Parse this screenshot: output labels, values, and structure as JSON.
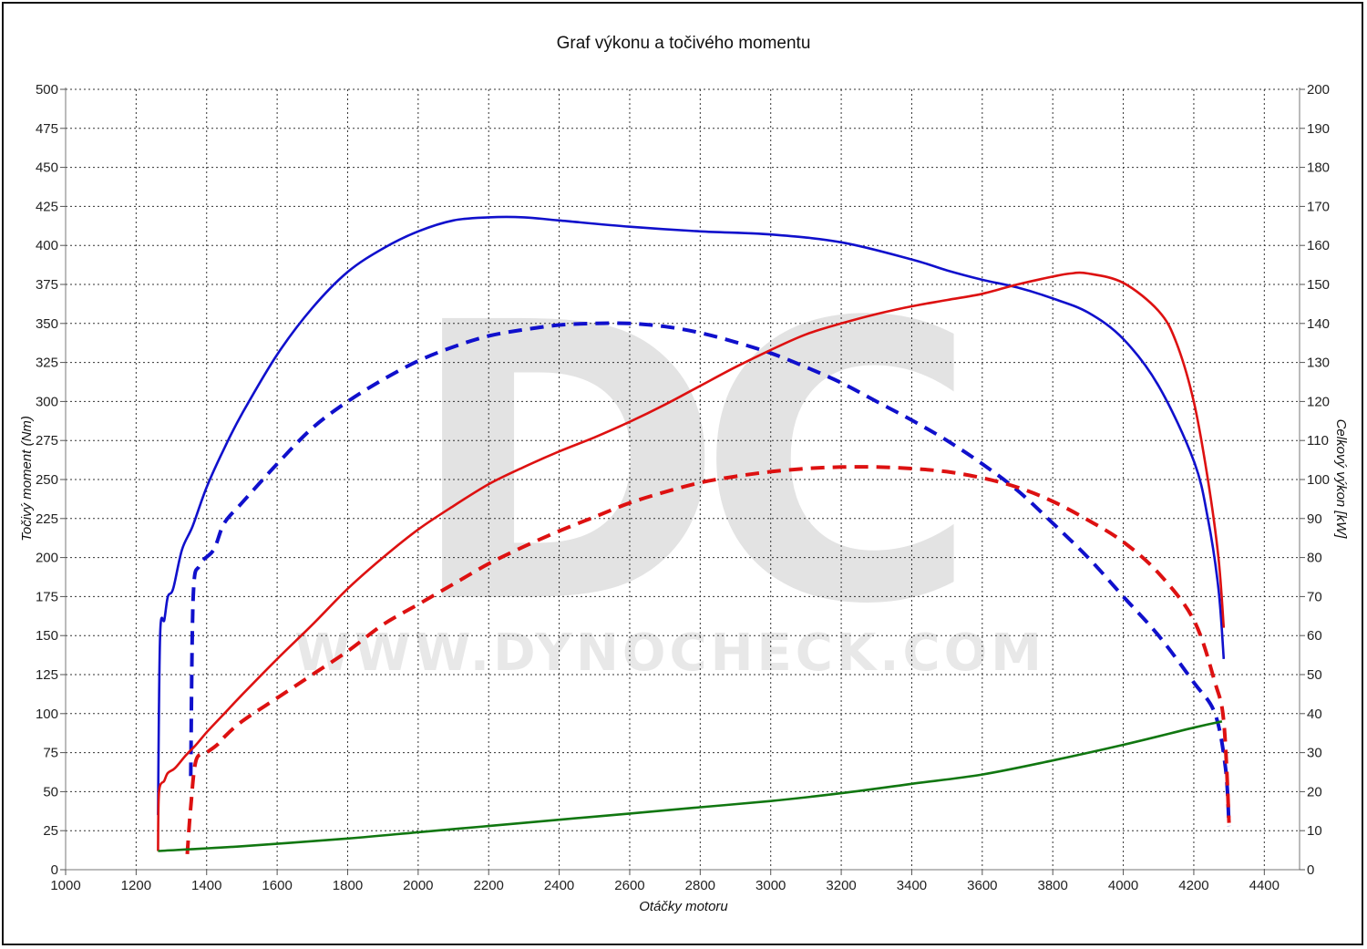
{
  "chart_data": {
    "type": "line",
    "title": "Graf výkonu a točivého momentu",
    "xlabel": "Otáčky motoru",
    "ylabel_left": "Točivý moment (Nm)",
    "ylabel_right": "Celkový výkon [kW]",
    "xlim": [
      1000,
      4500
    ],
    "ylim_left": [
      0,
      500
    ],
    "ylim_right": [
      0,
      200
    ],
    "x_ticks": [
      1000,
      1200,
      1400,
      1600,
      1800,
      2000,
      2200,
      2400,
      2600,
      2800,
      3000,
      3200,
      3400,
      3600,
      3800,
      4000,
      4200,
      4400
    ],
    "y_left_ticks": [
      0,
      25,
      50,
      75,
      100,
      125,
      150,
      175,
      200,
      225,
      250,
      275,
      300,
      325,
      350,
      375,
      400,
      425,
      450,
      475,
      500
    ],
    "y_right_ticks": [
      0,
      10,
      20,
      30,
      40,
      50,
      60,
      70,
      80,
      90,
      100,
      110,
      120,
      130,
      140,
      150,
      160,
      170,
      180,
      190,
      200
    ],
    "grid": true,
    "watermark": {
      "logo": "DC",
      "url": "WWW.DYNOCHECK.COM"
    },
    "series": [
      {
        "color": "#1010cc",
        "dash": "solid",
        "axis": "left",
        "points": [
          [
            1262,
            35
          ],
          [
            1268,
            150
          ],
          [
            1280,
            160
          ],
          [
            1290,
            175
          ],
          [
            1305,
            180
          ],
          [
            1330,
            205
          ],
          [
            1360,
            220
          ],
          [
            1400,
            245
          ],
          [
            1450,
            270
          ],
          [
            1500,
            292
          ],
          [
            1600,
            330
          ],
          [
            1700,
            360
          ],
          [
            1800,
            383
          ],
          [
            1900,
            398
          ],
          [
            2000,
            409
          ],
          [
            2100,
            416
          ],
          [
            2200,
            418
          ],
          [
            2300,
            418
          ],
          [
            2400,
            416
          ],
          [
            2600,
            412
          ],
          [
            2800,
            409
          ],
          [
            3000,
            407
          ],
          [
            3200,
            402
          ],
          [
            3400,
            391
          ],
          [
            3500,
            384
          ],
          [
            3600,
            378
          ],
          [
            3700,
            373
          ],
          [
            3800,
            366
          ],
          [
            3900,
            357
          ],
          [
            4000,
            340
          ],
          [
            4100,
            310
          ],
          [
            4200,
            262
          ],
          [
            4240,
            225
          ],
          [
            4270,
            180
          ],
          [
            4285,
            135
          ]
        ]
      },
      {
        "color": "#1010cc",
        "dash": "dashed",
        "axis": "left",
        "points": [
          [
            1355,
            60
          ],
          [
            1362,
            175
          ],
          [
            1380,
            195
          ],
          [
            1420,
            205
          ],
          [
            1450,
            222
          ],
          [
            1500,
            235
          ],
          [
            1600,
            260
          ],
          [
            1700,
            283
          ],
          [
            1800,
            300
          ],
          [
            1900,
            314
          ],
          [
            2000,
            326
          ],
          [
            2100,
            335
          ],
          [
            2200,
            342
          ],
          [
            2300,
            346
          ],
          [
            2400,
            349
          ],
          [
            2500,
            350
          ],
          [
            2600,
            350
          ],
          [
            2700,
            348
          ],
          [
            2800,
            344
          ],
          [
            2900,
            338
          ],
          [
            3000,
            331
          ],
          [
            3100,
            322
          ],
          [
            3200,
            312
          ],
          [
            3300,
            300
          ],
          [
            3400,
            288
          ],
          [
            3500,
            275
          ],
          [
            3600,
            260
          ],
          [
            3700,
            243
          ],
          [
            3800,
            222
          ],
          [
            3900,
            200
          ],
          [
            4000,
            175
          ],
          [
            4100,
            150
          ],
          [
            4200,
            120
          ],
          [
            4260,
            100
          ],
          [
            4290,
            65
          ],
          [
            4300,
            28
          ]
        ]
      },
      {
        "color": "#dd1111",
        "dash": "solid",
        "axis": "left",
        "points": [
          [
            1262,
            12
          ],
          [
            1265,
            50
          ],
          [
            1280,
            57
          ],
          [
            1290,
            62
          ],
          [
            1310,
            65
          ],
          [
            1340,
            73
          ],
          [
            1370,
            80
          ],
          [
            1400,
            88
          ],
          [
            1450,
            100
          ],
          [
            1500,
            112
          ],
          [
            1600,
            135
          ],
          [
            1700,
            157
          ],
          [
            1800,
            180
          ],
          [
            1900,
            200
          ],
          [
            2000,
            218
          ],
          [
            2100,
            233
          ],
          [
            2200,
            247
          ],
          [
            2300,
            258
          ],
          [
            2400,
            268
          ],
          [
            2500,
            277
          ],
          [
            2600,
            287
          ],
          [
            2700,
            298
          ],
          [
            2800,
            310
          ],
          [
            2900,
            322
          ],
          [
            3000,
            333
          ],
          [
            3100,
            343
          ],
          [
            3200,
            350
          ],
          [
            3300,
            356
          ],
          [
            3400,
            361
          ],
          [
            3500,
            365
          ],
          [
            3600,
            369
          ],
          [
            3700,
            375
          ],
          [
            3800,
            380
          ],
          [
            3850,
            382
          ],
          [
            3900,
            382
          ],
          [
            4000,
            376
          ],
          [
            4100,
            358
          ],
          [
            4150,
            338
          ],
          [
            4200,
            300
          ],
          [
            4240,
            250
          ],
          [
            4270,
            200
          ],
          [
            4285,
            155
          ]
        ]
      },
      {
        "color": "#dd1111",
        "dash": "dashed",
        "axis": "left",
        "points": [
          [
            1345,
            10
          ],
          [
            1355,
            40
          ],
          [
            1370,
            70
          ],
          [
            1400,
            75
          ],
          [
            1430,
            80
          ],
          [
            1450,
            85
          ],
          [
            1500,
            95
          ],
          [
            1600,
            110
          ],
          [
            1700,
            125
          ],
          [
            1800,
            140
          ],
          [
            1900,
            157
          ],
          [
            2000,
            170
          ],
          [
            2100,
            183
          ],
          [
            2200,
            196
          ],
          [
            2300,
            207
          ],
          [
            2400,
            217
          ],
          [
            2500,
            226
          ],
          [
            2600,
            235
          ],
          [
            2700,
            242
          ],
          [
            2800,
            248
          ],
          [
            2900,
            252
          ],
          [
            3000,
            255
          ],
          [
            3100,
            257
          ],
          [
            3200,
            258
          ],
          [
            3300,
            258
          ],
          [
            3400,
            257
          ],
          [
            3500,
            255
          ],
          [
            3600,
            251
          ],
          [
            3700,
            245
          ],
          [
            3800,
            236
          ],
          [
            3900,
            224
          ],
          [
            4000,
            210
          ],
          [
            4100,
            190
          ],
          [
            4200,
            160
          ],
          [
            4260,
            120
          ],
          [
            4285,
            95
          ],
          [
            4300,
            30
          ]
        ]
      },
      {
        "color": "#117711",
        "dash": "solid",
        "axis": "left",
        "points": [
          [
            1262,
            12
          ],
          [
            1500,
            15
          ],
          [
            1800,
            20
          ],
          [
            2000,
            24
          ],
          [
            2200,
            28
          ],
          [
            2400,
            32
          ],
          [
            2600,
            36
          ],
          [
            2800,
            40
          ],
          [
            3000,
            44
          ],
          [
            3200,
            49
          ],
          [
            3400,
            55
          ],
          [
            3600,
            61
          ],
          [
            3800,
            70
          ],
          [
            4000,
            80
          ],
          [
            4200,
            91
          ],
          [
            4280,
            95
          ]
        ]
      }
    ]
  }
}
